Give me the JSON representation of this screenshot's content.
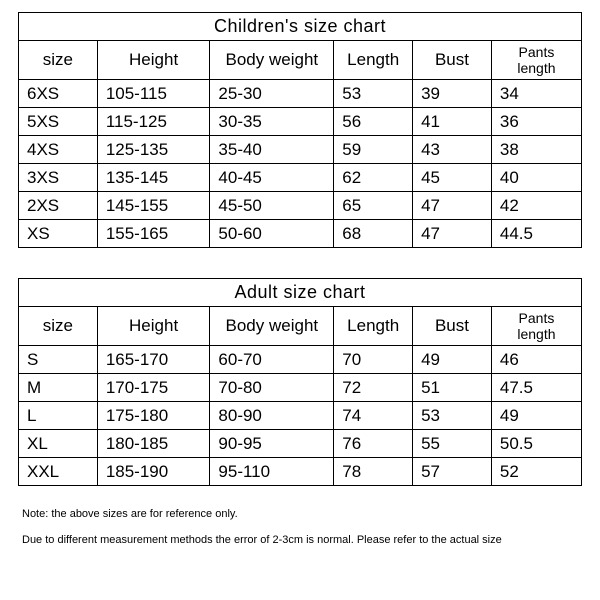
{
  "children_table": {
    "title": "Children's size chart",
    "columns": [
      "size",
      "Height",
      "Body weight",
      "Length",
      "Bust",
      "Pants length"
    ],
    "rows": [
      [
        "6XS",
        "105-115",
        "25-30",
        "53",
        "39",
        "34"
      ],
      [
        "5XS",
        "115-125",
        "30-35",
        "56",
        "41",
        "36"
      ],
      [
        "4XS",
        "125-135",
        "35-40",
        "59",
        "43",
        "38"
      ],
      [
        "3XS",
        "135-145",
        "40-45",
        "62",
        "45",
        "40"
      ],
      [
        "2XS",
        "145-155",
        "45-50",
        "65",
        "47",
        "42"
      ],
      [
        "XS",
        "155-165",
        "50-60",
        "68",
        "47",
        "44.5"
      ]
    ]
  },
  "adult_table": {
    "title": "Adult size chart",
    "columns": [
      "size",
      "Height",
      "Body weight",
      "Length",
      "Bust",
      "Pants length"
    ],
    "rows": [
      [
        "S",
        "165-170",
        "60-70",
        "70",
        "49",
        "46"
      ],
      [
        "M",
        "170-175",
        "70-80",
        "72",
        "51",
        "47.5"
      ],
      [
        "L",
        "175-180",
        "80-90",
        "74",
        "53",
        "49"
      ],
      [
        "XL",
        "180-185",
        "90-95",
        "76",
        "55",
        "50.5"
      ],
      [
        "XXL",
        "185-190",
        "95-110",
        "78",
        "57",
        "52"
      ]
    ]
  },
  "notes": {
    "line1": "Note: the above sizes are for reference only.",
    "line2": "Due to different measurement methods the error of 2-3cm is normal. Please refer to the actual size"
  },
  "styling": {
    "border_color": "#000000",
    "background": "#ffffff",
    "text_color": "#000000",
    "cell_fontsize": 17,
    "title_fontsize": 18,
    "note_fontsize": 11,
    "column_widths_pct": [
      14,
      20,
      22,
      14,
      14,
      16
    ]
  }
}
